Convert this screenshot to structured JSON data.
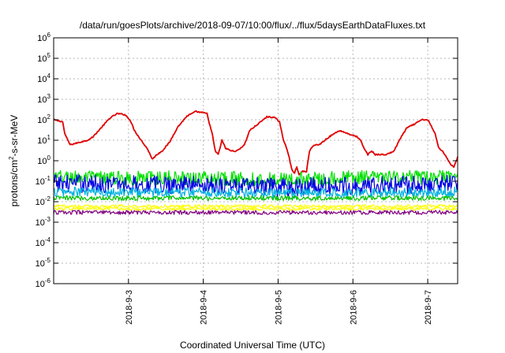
{
  "chart_data": {
    "type": "line",
    "title": "/data/run/goesPlots/archive/2018-09-07/10:00/flux/../flux/5daysEarthDataFluxes.txt",
    "xlabel": "Coordinated Universal Time (UTC)",
    "ylabel": {
      "parts": [
        "protons/cm",
        "2",
        "-s-sr-MeV"
      ]
    },
    "x_range_days": [
      0,
      5.4
    ],
    "x_ticks": [
      {
        "label": "2018-9-3",
        "x": 1
      },
      {
        "label": "2018-9-4",
        "x": 2
      },
      {
        "label": "2018-9-5",
        "x": 3
      },
      {
        "label": "2018-9-6",
        "x": 4
      },
      {
        "label": "2018-9-7",
        "x": 5
      }
    ],
    "y_scale": "log",
    "ylim_exp": [
      -6,
      6
    ],
    "y_ticks": [
      {
        "base": "10",
        "exp": "6",
        "value": 6
      },
      {
        "base": "10",
        "exp": "5",
        "value": 5
      },
      {
        "base": "10",
        "exp": "4",
        "value": 4
      },
      {
        "base": "10",
        "exp": "3",
        "value": 3
      },
      {
        "base": "10",
        "exp": "2",
        "value": 2
      },
      {
        "base": "10",
        "exp": "1",
        "value": 1
      },
      {
        "base": "10",
        "exp": "0",
        "value": 0
      },
      {
        "base": "10",
        "exp": "-1",
        "value": -1
      },
      {
        "base": "10",
        "exp": "-2",
        "value": -2
      },
      {
        "base": "10",
        "exp": "-3",
        "value": -3
      },
      {
        "base": "10",
        "exp": "-4",
        "value": -4
      },
      {
        "base": "10",
        "exp": "-5",
        "value": -5
      },
      {
        "base": "10",
        "exp": "-6",
        "value": -6
      }
    ],
    "grid": true,
    "series": [
      {
        "color": "#e00000",
        "noise": 0.03,
        "points": [
          [
            0.0,
            100
          ],
          [
            0.12,
            80
          ],
          [
            0.15,
            20
          ],
          [
            0.22,
            6
          ],
          [
            0.35,
            8
          ],
          [
            0.45,
            10
          ],
          [
            0.52,
            14
          ],
          [
            0.62,
            35
          ],
          [
            0.75,
            120
          ],
          [
            0.85,
            200
          ],
          [
            0.95,
            180
          ],
          [
            1.02,
            100
          ],
          [
            1.08,
            30
          ],
          [
            1.17,
            10
          ],
          [
            1.25,
            4
          ],
          [
            1.32,
            1.2
          ],
          [
            1.38,
            2
          ],
          [
            1.45,
            3
          ],
          [
            1.55,
            8
          ],
          [
            1.65,
            40
          ],
          [
            1.78,
            150
          ],
          [
            1.9,
            250
          ],
          [
            2.0,
            220
          ],
          [
            2.05,
            200
          ],
          [
            2.08,
            70
          ],
          [
            2.12,
            20
          ],
          [
            2.16,
            3
          ],
          [
            2.2,
            2
          ],
          [
            2.25,
            10
          ],
          [
            2.3,
            4
          ],
          [
            2.38,
            3
          ],
          [
            2.45,
            3
          ],
          [
            2.55,
            6
          ],
          [
            2.62,
            30
          ],
          [
            2.75,
            70
          ],
          [
            2.85,
            140
          ],
          [
            2.95,
            130
          ],
          [
            3.02,
            80
          ],
          [
            3.07,
            10
          ],
          [
            3.1,
            6
          ],
          [
            3.14,
            2
          ],
          [
            3.18,
            0.4
          ],
          [
            3.22,
            0.25
          ],
          [
            3.25,
            0.5
          ],
          [
            3.28,
            0.2
          ],
          [
            3.32,
            0.3
          ],
          [
            3.38,
            0.3
          ],
          [
            3.42,
            3
          ],
          [
            3.48,
            6
          ],
          [
            3.55,
            6
          ],
          [
            3.65,
            12
          ],
          [
            3.72,
            18
          ],
          [
            3.82,
            30
          ],
          [
            3.88,
            25
          ],
          [
            3.95,
            20
          ],
          [
            4.05,
            15
          ],
          [
            4.1,
            10
          ],
          [
            4.15,
            4
          ],
          [
            4.2,
            2
          ],
          [
            4.25,
            3
          ],
          [
            4.3,
            2
          ],
          [
            4.38,
            2
          ],
          [
            4.45,
            2
          ],
          [
            4.55,
            3
          ],
          [
            4.62,
            10
          ],
          [
            4.72,
            40
          ],
          [
            4.82,
            60
          ],
          [
            4.92,
            100
          ],
          [
            5.0,
            100
          ],
          [
            5.06,
            40
          ],
          [
            5.1,
            20
          ],
          [
            5.15,
            4
          ],
          [
            5.2,
            3
          ],
          [
            5.25,
            1.5
          ],
          [
            5.3,
            0.7
          ],
          [
            5.35,
            0.5
          ],
          [
            5.4,
            1.5
          ]
        ]
      },
      {
        "color": "#00e000",
        "noise": 0.35,
        "points": [
          [
            0.0,
            0.16
          ],
          [
            1.0,
            0.14
          ],
          [
            2.0,
            0.15
          ],
          [
            3.0,
            0.12
          ],
          [
            4.0,
            0.15
          ],
          [
            5.0,
            0.15
          ],
          [
            5.4,
            0.16
          ]
        ]
      },
      {
        "color": "#0000e0",
        "noise": 0.45,
        "points": [
          [
            0.0,
            0.08
          ],
          [
            1.0,
            0.07
          ],
          [
            2.0,
            0.07
          ],
          [
            3.0,
            0.05
          ],
          [
            4.0,
            0.06
          ],
          [
            5.0,
            0.07
          ],
          [
            5.4,
            0.08
          ]
        ]
      },
      {
        "color": "#00b0e0",
        "noise": 0.25,
        "points": [
          [
            0.0,
            0.03
          ],
          [
            1.0,
            0.03
          ],
          [
            2.0,
            0.03
          ],
          [
            3.0,
            0.025
          ],
          [
            4.0,
            0.028
          ],
          [
            5.0,
            0.03
          ],
          [
            5.4,
            0.03
          ]
        ]
      },
      {
        "color": "#00c000",
        "noise": 0.12,
        "points": [
          [
            0.0,
            0.015
          ],
          [
            5.4,
            0.015
          ]
        ]
      },
      {
        "color": "#ffff00",
        "noise": 0.08,
        "points": [
          [
            0.0,
            0.006
          ],
          [
            5.4,
            0.006
          ]
        ]
      },
      {
        "color": "#ffff00",
        "noise": 0.08,
        "points": [
          [
            0.0,
            0.0045
          ],
          [
            5.4,
            0.0045
          ]
        ]
      },
      {
        "color": "#800080",
        "noise": 0.1,
        "points": [
          [
            0.0,
            0.003
          ],
          [
            5.4,
            0.003
          ]
        ]
      }
    ]
  }
}
